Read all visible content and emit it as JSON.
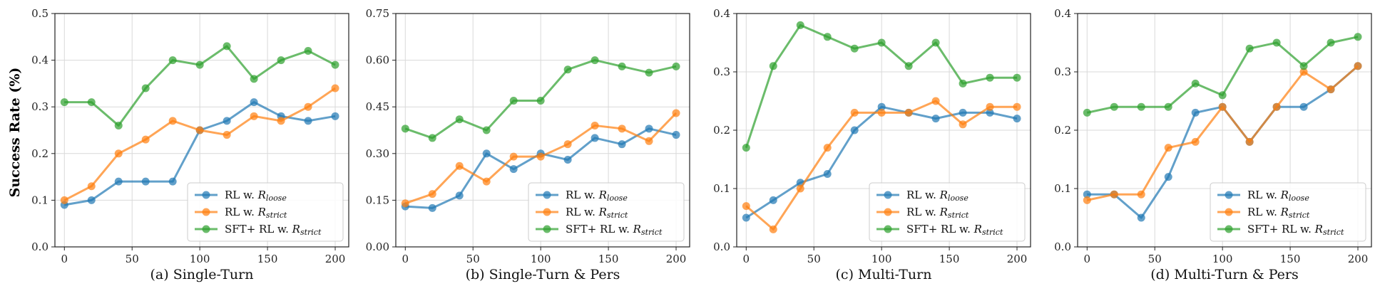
{
  "figure": {
    "ylabel": "Success Rate (%)",
    "colors": {
      "blue": "#1f77b4",
      "orange": "#ff7f0e",
      "green": "#2ca02c",
      "grid": "#d9d9d9",
      "axis": "#222222"
    }
  },
  "chart_data": [
    {
      "type": "line",
      "title": "(a) Single-Turn",
      "xlabel": "",
      "ylabel": "Success Rate (%)",
      "x": [
        0,
        20,
        40,
        60,
        80,
        100,
        120,
        140,
        160,
        180,
        200
      ],
      "xticks": [
        0,
        50,
        100,
        150,
        200
      ],
      "yticks": [
        0.0,
        0.1,
        0.2,
        0.3,
        0.4,
        0.5
      ],
      "ytick_labels": [
        "0.0",
        "0.1",
        "0.2",
        "0.3",
        "0.4",
        "0.5"
      ],
      "ylim": [
        0,
        0.5
      ],
      "xlim": [
        -7,
        210
      ],
      "legend_position": "bottom-right",
      "series": [
        {
          "name": "RL w. R_loose",
          "label_main": "RL w. R",
          "label_sub": "loose",
          "color": "#1f77b4",
          "values": [
            0.09,
            0.1,
            0.14,
            0.14,
            0.14,
            0.25,
            0.27,
            0.31,
            0.28,
            0.27,
            0.28
          ]
        },
        {
          "name": "RL w. R_strict",
          "label_main": "RL w. R",
          "label_sub": "strict",
          "color": "#ff7f0e",
          "values": [
            0.1,
            0.13,
            0.2,
            0.23,
            0.27,
            0.25,
            0.24,
            0.28,
            0.27,
            0.3,
            0.34
          ]
        },
        {
          "name": "SFT+ RL w. R_strict",
          "label_main": "SFT+ RL w. R",
          "label_sub": "strict",
          "color": "#2ca02c",
          "values": [
            0.31,
            0.31,
            0.26,
            0.34,
            0.4,
            0.39,
            0.43,
            0.36,
            0.4,
            0.42,
            0.39
          ]
        }
      ]
    },
    {
      "type": "line",
      "title": "(b) Single-Turn & Pers",
      "xlabel": "",
      "ylabel": "",
      "x": [
        0,
        20,
        40,
        60,
        80,
        100,
        120,
        140,
        160,
        180,
        200
      ],
      "xticks": [
        0,
        50,
        100,
        150,
        200
      ],
      "yticks": [
        0.0,
        0.15,
        0.3,
        0.45,
        0.6,
        0.75
      ],
      "ytick_labels": [
        "0.00",
        "0.15",
        "0.30",
        "0.45",
        "0.60",
        "0.75"
      ],
      "ylim": [
        0,
        0.75
      ],
      "xlim": [
        -7,
        210
      ],
      "legend_position": "bottom-right",
      "series": [
        {
          "name": "RL w. R_loose",
          "label_main": "RL w. R",
          "label_sub": "loose",
          "color": "#1f77b4",
          "values": [
            0.13,
            0.125,
            0.165,
            0.3,
            0.25,
            0.3,
            0.28,
            0.35,
            0.33,
            0.38,
            0.36
          ]
        },
        {
          "name": "RL w. R_strict",
          "label_main": "RL w. R",
          "label_sub": "strict",
          "color": "#ff7f0e",
          "values": [
            0.14,
            0.17,
            0.26,
            0.21,
            0.29,
            0.29,
            0.33,
            0.39,
            0.38,
            0.34,
            0.43
          ]
        },
        {
          "name": "SFT+ RL w. R_strict",
          "label_main": "SFT+ RL w. R",
          "label_sub": "strict",
          "color": "#2ca02c",
          "values": [
            0.38,
            0.35,
            0.41,
            0.375,
            0.47,
            0.47,
            0.57,
            0.6,
            0.58,
            0.56,
            0.58
          ]
        }
      ]
    },
    {
      "type": "line",
      "title": "(c) Multi-Turn",
      "xlabel": "",
      "ylabel": "",
      "x": [
        0,
        20,
        40,
        60,
        80,
        100,
        120,
        140,
        160,
        180,
        200
      ],
      "xticks": [
        0,
        50,
        100,
        150,
        200
      ],
      "yticks": [
        0.0,
        0.1,
        0.2,
        0.3,
        0.4
      ],
      "ytick_labels": [
        "0.0",
        "0.1",
        "0.2",
        "0.3",
        "0.4"
      ],
      "ylim": [
        0,
        0.4
      ],
      "xlim": [
        -7,
        210
      ],
      "legend_position": "bottom-right",
      "series": [
        {
          "name": "RL w. R_loose",
          "label_main": "RL w. R",
          "label_sub": "loose",
          "color": "#1f77b4",
          "values": [
            0.05,
            0.08,
            0.11,
            0.125,
            0.2,
            0.24,
            0.23,
            0.22,
            0.23,
            0.23,
            0.22
          ]
        },
        {
          "name": "RL w. R_strict",
          "label_main": "RL w. R",
          "label_sub": "strict",
          "color": "#ff7f0e",
          "values": [
            0.07,
            0.03,
            0.1,
            0.17,
            0.23,
            0.23,
            0.23,
            0.25,
            0.21,
            0.24,
            0.24
          ]
        },
        {
          "name": "SFT+ RL w. R_strict",
          "label_main": "SFT+ RL w. R",
          "label_sub": "strict",
          "color": "#2ca02c",
          "values": [
            0.17,
            0.31,
            0.38,
            0.36,
            0.34,
            0.35,
            0.31,
            0.35,
            0.28,
            0.29,
            0.29
          ]
        }
      ]
    },
    {
      "type": "line",
      "title": "(d) Multi-Turn & Pers",
      "xlabel": "",
      "ylabel": "",
      "x": [
        0,
        20,
        40,
        60,
        80,
        100,
        120,
        140,
        160,
        180,
        200
      ],
      "xticks": [
        0,
        50,
        100,
        150,
        200
      ],
      "yticks": [
        0.0,
        0.1,
        0.2,
        0.3,
        0.4
      ],
      "ytick_labels": [
        "0.0",
        "0.1",
        "0.2",
        "0.3",
        "0.4"
      ],
      "ylim": [
        0,
        0.4
      ],
      "xlim": [
        -7,
        210
      ],
      "legend_position": "bottom-right",
      "series": [
        {
          "name": "RL w. R_loose",
          "label_main": "RL w. R",
          "label_sub": "loose",
          "color": "#1f77b4",
          "values": [
            0.09,
            0.09,
            0.05,
            0.12,
            0.23,
            0.24,
            0.18,
            0.24,
            0.24,
            0.27,
            0.31
          ]
        },
        {
          "name": "RL w. R_strict",
          "label_main": "RL w. R",
          "label_sub": "strict",
          "color": "#ff7f0e",
          "values": [
            0.08,
            0.09,
            0.09,
            0.17,
            0.18,
            0.24,
            0.18,
            0.24,
            0.3,
            0.27,
            0.31
          ]
        },
        {
          "name": "SFT+ RL w. R_strict",
          "label_main": "SFT+ RL w. R",
          "label_sub": "strict",
          "color": "#2ca02c",
          "values": [
            0.23,
            0.24,
            0.24,
            0.24,
            0.28,
            0.26,
            0.34,
            0.35,
            0.31,
            0.35,
            0.36
          ]
        }
      ]
    }
  ]
}
